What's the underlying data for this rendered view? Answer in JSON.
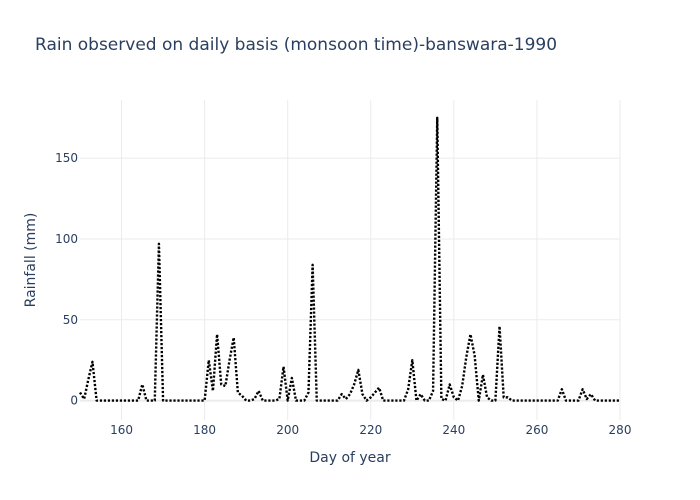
{
  "chart_data": {
    "type": "line",
    "title": "Rain observed on daily basis (monsoon time)-banswara-1990",
    "xlabel": "Day of year",
    "ylabel": "Rainfall (mm)",
    "xlim": [
      150,
      280
    ],
    "ylim": [
      -12,
      186
    ],
    "xticks": [
      160,
      180,
      200,
      220,
      240,
      260,
      280
    ],
    "yticks": [
      0,
      50,
      100,
      150
    ],
    "grid": true,
    "line_style": "dotted",
    "line_color": "#000000",
    "series": [
      {
        "x": [
          150,
          151,
          152,
          153,
          154,
          155,
          156,
          157,
          158,
          159,
          160,
          161,
          162,
          163,
          164,
          165,
          166,
          167,
          168,
          169,
          170,
          171,
          172,
          173,
          174,
          175,
          176,
          177,
          178,
          179,
          180,
          181,
          182,
          183,
          184,
          185,
          186,
          187,
          188,
          189,
          190,
          191,
          192,
          193,
          194,
          195,
          196,
          197,
          198,
          199,
          200,
          201,
          202,
          203,
          204,
          205,
          206,
          207,
          208,
          209,
          210,
          211,
          212,
          213,
          214,
          215,
          216,
          217,
          218,
          219,
          220,
          221,
          222,
          223,
          224,
          225,
          226,
          227,
          228,
          229,
          230,
          231,
          232,
          233,
          234,
          235,
          236,
          237,
          238,
          239,
          240,
          241,
          242,
          243,
          244,
          245,
          246,
          247,
          248,
          249,
          250,
          251,
          252,
          253,
          254,
          255,
          256,
          257,
          258,
          259,
          260,
          261,
          262,
          263,
          264,
          265,
          266,
          267,
          268,
          269,
          270,
          271,
          272,
          273,
          274,
          275,
          276,
          277,
          278,
          279,
          280
        ],
        "y": [
          5,
          1,
          13,
          24,
          0,
          0,
          0,
          0,
          0,
          0,
          0,
          0,
          0,
          0,
          0,
          10,
          0,
          0,
          0,
          97,
          0,
          0,
          0,
          0,
          0,
          0,
          0,
          0,
          0,
          0,
          0,
          25,
          6,
          41,
          10,
          9,
          25,
          39,
          5,
          3,
          0,
          0,
          1,
          6,
          0,
          0,
          0,
          0,
          1,
          21,
          0,
          14,
          0,
          0,
          0,
          5,
          84,
          0,
          0,
          0,
          0,
          0,
          0,
          4,
          1,
          4,
          10,
          19,
          4,
          0,
          2,
          5,
          8,
          0,
          0,
          0,
          0,
          0,
          0,
          7,
          25,
          0,
          4,
          0,
          0,
          6,
          175,
          1,
          0,
          10,
          2,
          0,
          9,
          27,
          41,
          28,
          0,
          16,
          2,
          0,
          0,
          46,
          2,
          2,
          0,
          0,
          0,
          0,
          0,
          0,
          0,
          0,
          0,
          0,
          0,
          0,
          7,
          0,
          0,
          0,
          0,
          7,
          1,
          4,
          0,
          0,
          0,
          0,
          0,
          0,
          0
        ]
      }
    ]
  }
}
